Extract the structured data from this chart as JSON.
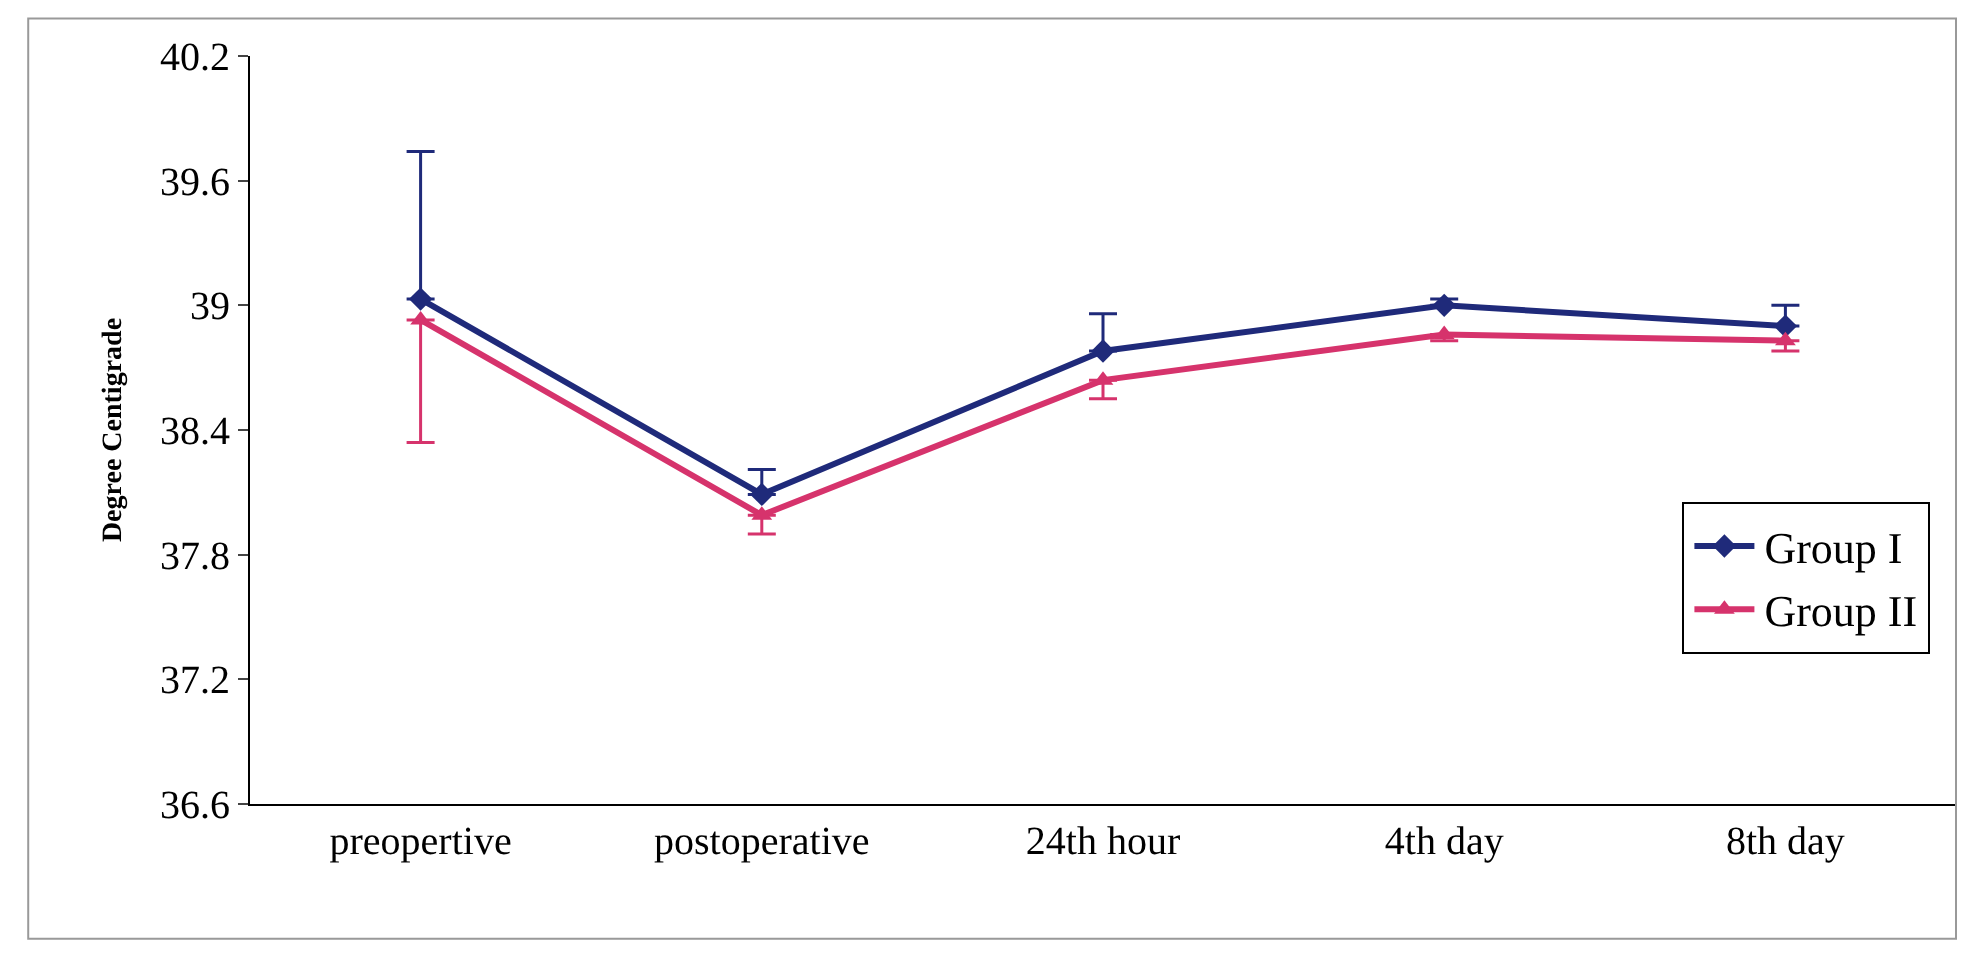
{
  "chart_data": {
    "type": "line",
    "ylabel": "Degree Centigrade",
    "categories": [
      "preopertive",
      "postoperative",
      "24th hour",
      "4th day",
      "8th day"
    ],
    "series": [
      {
        "name": "Group I",
        "color": "#1f2a7a",
        "marker": "diamond",
        "values": [
          39.03,
          38.09,
          38.78,
          39.0,
          38.9
        ],
        "errors": [
          [
            39.03,
            39.74
          ],
          [
            38.09,
            38.21
          ],
          [
            38.78,
            38.96
          ],
          [
            39.0,
            39.03
          ],
          [
            38.9,
            39.0
          ]
        ]
      },
      {
        "name": "Group II",
        "color": "#d6336c",
        "marker": "triangle",
        "values": [
          38.93,
          37.99,
          38.64,
          38.86,
          38.83
        ],
        "errors": [
          [
            38.34,
            38.93
          ],
          [
            37.9,
            37.99
          ],
          [
            38.55,
            38.64
          ],
          [
            38.83,
            38.86
          ],
          [
            38.78,
            38.83
          ]
        ]
      }
    ],
    "ylim": [
      36.6,
      40.2
    ],
    "yticks": [
      36.6,
      37.2,
      37.8,
      38.4,
      39,
      39.6,
      40.2
    ],
    "grid": false,
    "legend": "bottom right"
  }
}
